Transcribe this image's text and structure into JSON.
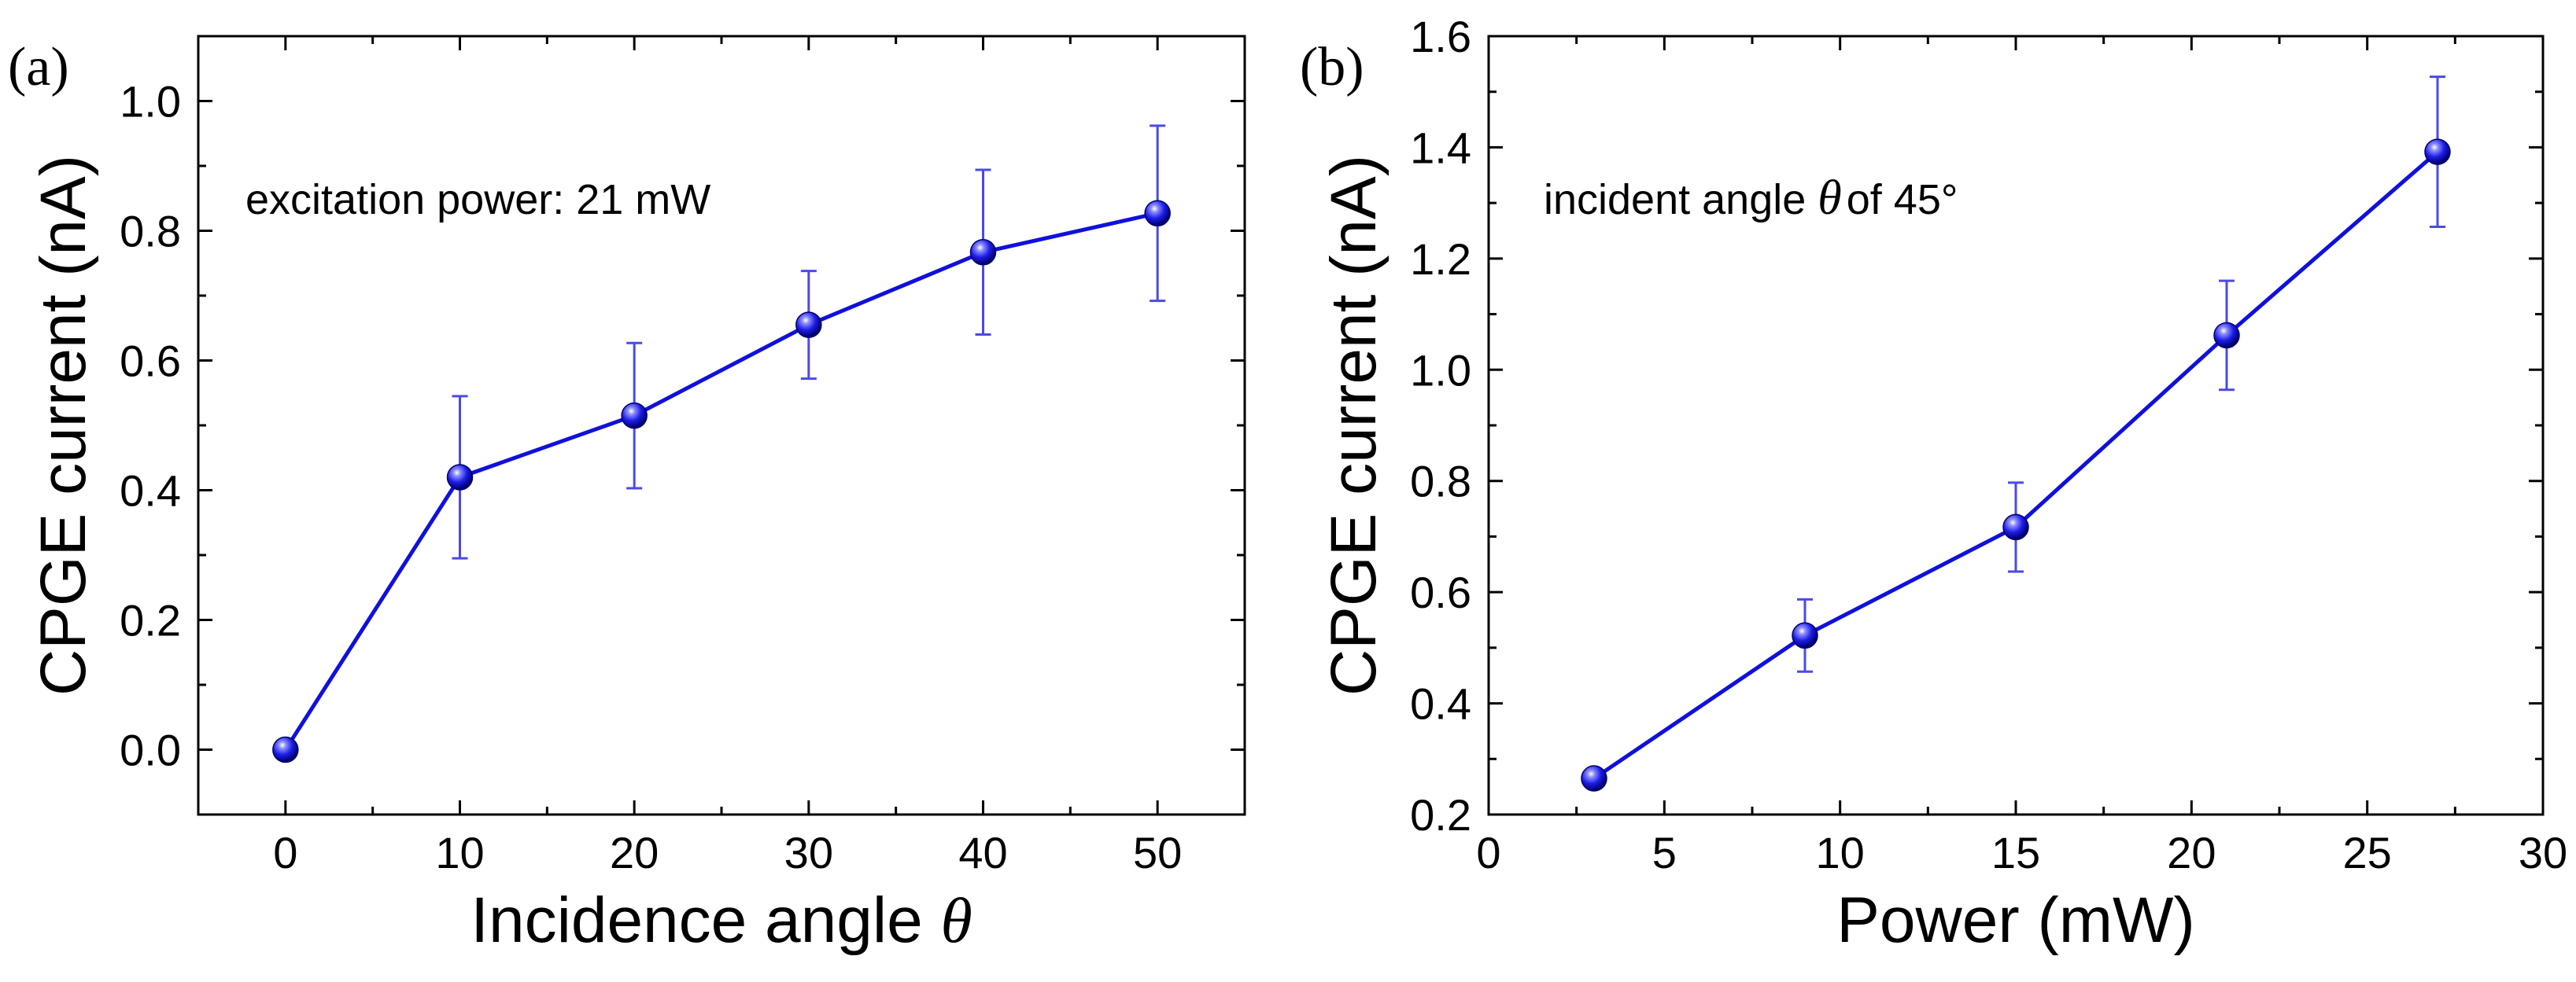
{
  "chart_data": [
    {
      "id": "a",
      "type": "line",
      "panel_label": "(a)",
      "annotation": "excitation power: 21 mW",
      "xlabel": "Incidence angle",
      "xlabel_symbol": "θ",
      "ylabel": "CPGE current (nA)",
      "xlim": [
        -5,
        55
      ],
      "ylim": [
        -0.1,
        1.1
      ],
      "x_ticks": [
        0,
        10,
        20,
        30,
        40,
        50
      ],
      "y_ticks": [
        0.0,
        0.2,
        0.4,
        0.6,
        0.8,
        1.0
      ],
      "x_tick_labels": [
        "0",
        "10",
        "20",
        "30",
        "40",
        "50"
      ],
      "y_tick_labels": [
        "0.0",
        "0.2",
        "0.4",
        "0.6",
        "0.8",
        "1.0"
      ],
      "series": [
        {
          "name": "CPGE current",
          "color": "#1414e0",
          "x": [
            0,
            10,
            20,
            30,
            40,
            50
          ],
          "y": [
            0.0,
            0.42,
            0.515,
            0.655,
            0.767,
            0.827
          ],
          "err": [
            0.0,
            0.125,
            0.112,
            0.083,
            0.127,
            0.135
          ]
        }
      ]
    },
    {
      "id": "b",
      "type": "line",
      "panel_label": "(b)",
      "annotation_prefix": "incident angle",
      "annotation_symbol": "θ",
      "annotation_suffix": "of 45°",
      "xlabel": "Power (mW)",
      "ylabel": "CPGE current (nA)",
      "xlim": [
        0,
        30
      ],
      "ylim": [
        0.2,
        1.6
      ],
      "x_ticks": [
        0,
        5,
        10,
        15,
        20,
        25,
        30
      ],
      "y_ticks": [
        0.2,
        0.4,
        0.6,
        0.8,
        1.0,
        1.2,
        1.4,
        1.6
      ],
      "x_tick_labels": [
        "0",
        "5",
        "10",
        "15",
        "20",
        "25",
        "30"
      ],
      "y_tick_labels": [
        "0.2",
        "0.4",
        "0.6",
        "0.8",
        "1.0",
        "1.2",
        "1.4",
        "1.6"
      ],
      "series": [
        {
          "name": "CPGE current",
          "color": "#1414e0",
          "x": [
            3,
            9,
            15,
            21,
            27
          ],
          "y": [
            0.265,
            0.522,
            0.717,
            1.062,
            1.392
          ],
          "err": [
            0.0,
            0.065,
            0.08,
            0.098,
            0.135
          ]
        }
      ]
    }
  ]
}
